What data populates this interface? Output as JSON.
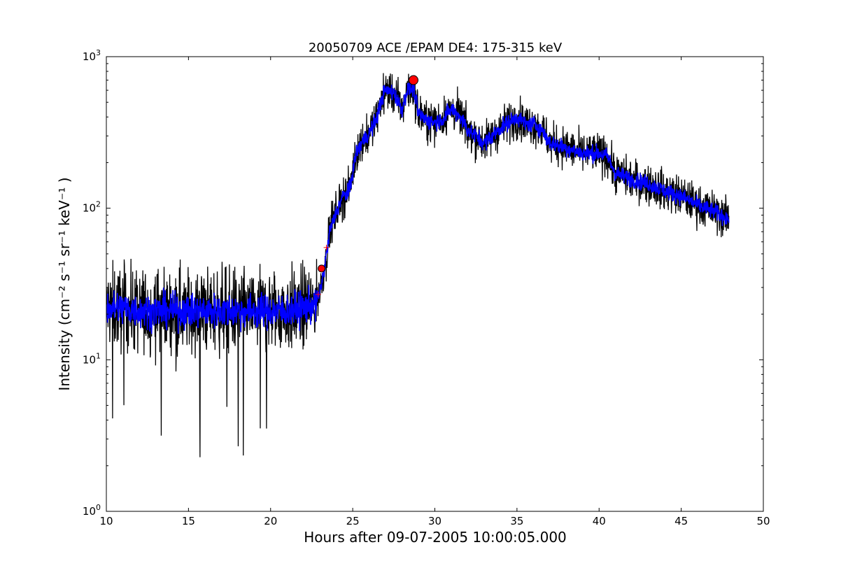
{
  "chart_data": {
    "type": "line",
    "title": "20050709 ACE /EPAM DE4: 175-315 keV",
    "xlabel": "Hours after 09-07-2005 10:00:05.000",
    "ylabel": "Intensity (cm⁻² s⁻¹ sr⁻¹ keV⁻¹ )",
    "xlim": [
      10,
      50
    ],
    "ylim": [
      1,
      1000
    ],
    "yscale": "log",
    "grid": false,
    "xticks": [
      10,
      15,
      20,
      25,
      30,
      35,
      40,
      45,
      50
    ],
    "xtick_labels": [
      "10",
      "15",
      "20",
      "25",
      "30",
      "35",
      "40",
      "45",
      "50"
    ],
    "yticks": [
      1,
      10,
      100,
      1000
    ],
    "ytick_labels": [
      {
        "base": "10",
        "exp": "0"
      },
      {
        "base": "10",
        "exp": "1"
      },
      {
        "base": "10",
        "exp": "2"
      },
      {
        "base": "10",
        "exp": "3"
      }
    ],
    "series": [
      {
        "role": "raw",
        "color": "#000000",
        "noise": 0.22,
        "x": [
          10.0,
          11.0,
          12.0,
          13.0,
          14.0,
          15.0,
          16.0,
          17.0,
          18.0,
          19.0,
          20.0,
          21.0,
          22.0,
          22.7,
          23.0,
          23.3,
          23.6,
          24.0,
          24.4,
          24.8,
          25.2,
          25.6,
          26.0,
          26.4,
          26.8,
          27.0,
          27.5,
          28.0,
          28.3,
          28.7,
          29.0,
          29.5,
          30.0,
          30.5,
          31.0,
          31.5,
          32.0,
          32.5,
          33.0,
          33.5,
          34.0,
          34.5,
          35.0,
          35.5,
          36.0,
          36.5,
          37.0,
          37.5,
          38.0,
          39.0,
          40.0,
          40.5,
          41.0,
          42.0,
          43.0,
          44.0,
          45.0,
          46.0,
          47.0,
          47.9
        ],
        "y": [
          22,
          22,
          21,
          21,
          21,
          21,
          21,
          21,
          21,
          21,
          21,
          21,
          22,
          23,
          28,
          42,
          70,
          95,
          120,
          130,
          230,
          280,
          310,
          380,
          540,
          600,
          580,
          450,
          600,
          620,
          420,
          380,
          370,
          390,
          450,
          410,
          330,
          300,
          270,
          300,
          340,
          370,
          400,
          360,
          360,
          330,
          270,
          260,
          250,
          230,
          230,
          220,
          170,
          155,
          145,
          130,
          120,
          105,
          95,
          85
        ]
      },
      {
        "role": "smoothed",
        "color": "#0000ff",
        "noise": 0.09,
        "x": [
          10.0,
          11.0,
          12.0,
          13.0,
          14.0,
          15.0,
          16.0,
          17.0,
          18.0,
          19.0,
          20.0,
          21.0,
          22.0,
          22.7,
          23.0,
          23.3,
          23.6,
          24.0,
          24.4,
          24.8,
          25.2,
          25.6,
          26.0,
          26.4,
          26.8,
          27.0,
          27.5,
          28.0,
          28.3,
          28.7,
          29.0,
          29.5,
          30.0,
          30.5,
          31.0,
          31.5,
          32.0,
          32.5,
          33.0,
          33.5,
          34.0,
          34.5,
          35.0,
          35.5,
          36.0,
          36.5,
          37.0,
          37.5,
          38.0,
          39.0,
          40.0,
          40.5,
          41.0,
          42.0,
          43.0,
          44.0,
          45.0,
          46.0,
          47.0,
          47.9
        ],
        "y": [
          22,
          22,
          21,
          21,
          21,
          21,
          21,
          21,
          21,
          21,
          21,
          21,
          22,
          23,
          28,
          42,
          70,
          95,
          120,
          130,
          230,
          280,
          310,
          380,
          540,
          600,
          580,
          450,
          600,
          620,
          420,
          380,
          370,
          390,
          450,
          410,
          330,
          300,
          270,
          300,
          340,
          370,
          400,
          360,
          360,
          330,
          270,
          260,
          250,
          230,
          230,
          220,
          170,
          155,
          145,
          130,
          120,
          105,
          95,
          85
        ]
      }
    ],
    "markers": [
      {
        "x": 23.1,
        "y": 40,
        "shape": "circle",
        "color": "#ff0000",
        "size": "small"
      },
      {
        "x": 28.7,
        "y": 700,
        "shape": "circle",
        "color": "#ff0000",
        "size": "large"
      },
      {
        "x": 22.9,
        "y": 27,
        "shape": "plus",
        "color": "#ff0000"
      },
      {
        "x": 23.4,
        "y": 55,
        "shape": "plus",
        "color": "#ff0000"
      }
    ]
  }
}
